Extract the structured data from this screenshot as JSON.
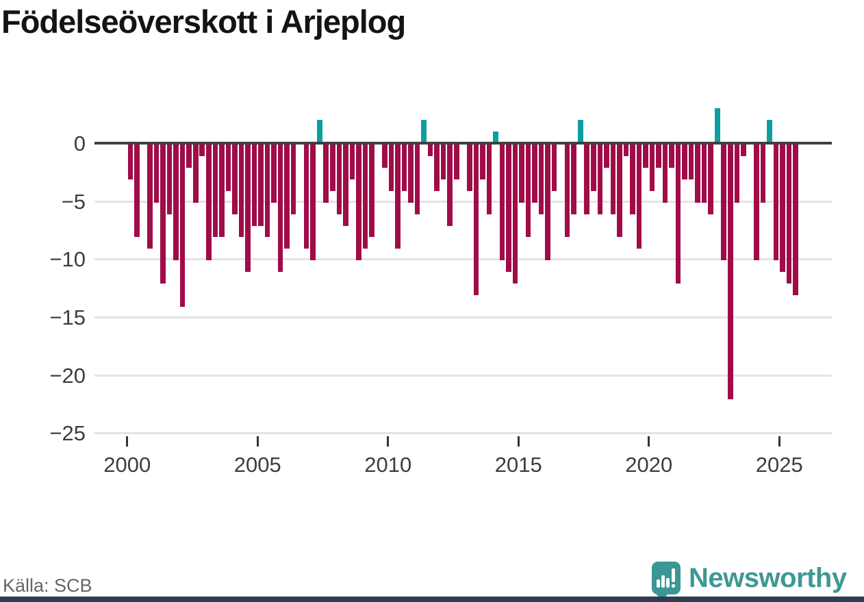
{
  "title": "Födelseöverskott i Arjeplog",
  "source": "Källa: SCB",
  "logo": {
    "text": "Newsworthy",
    "icon": "newsworthy-bar-chart-bubble-icon"
  },
  "colors": {
    "negative_bar": "#a00c48",
    "positive_bar": "#0d9fa0",
    "zero_line": "#404040",
    "gridline": "#e4e4e4",
    "axis_text": "#3d3d3d",
    "title_text": "#141414",
    "source_text": "#666666",
    "logo_teal": "#3f9894",
    "bottom_strip": "#2e3d52"
  },
  "chart_data": {
    "type": "bar",
    "title": "Födelseöverskott i Arjeplog",
    "xlabel": "",
    "ylabel": "",
    "start_year": 2000,
    "start_quarter": 1,
    "period": "quarterly",
    "values": [
      -3,
      -8,
      0,
      -9,
      -5,
      -12,
      -6,
      -10,
      -14,
      -2,
      -5,
      -1,
      -10,
      -8,
      -8,
      -4,
      -6,
      -8,
      -11,
      -7,
      -7,
      -8,
      -5,
      -11,
      -9,
      -6,
      0,
      -9,
      -10,
      2,
      -5,
      -4,
      -6,
      -7,
      -3,
      -10,
      -9,
      -8,
      0,
      -2,
      -4,
      -9,
      -4,
      -5,
      -6,
      2,
      -1,
      -4,
      -3,
      -7,
      -3,
      0,
      -4,
      -13,
      -3,
      -6,
      1,
      -10,
      -11,
      -12,
      -5,
      -8,
      -5,
      -6,
      -10,
      -4,
      0,
      -8,
      -6,
      2,
      -6,
      -4,
      -6,
      -2,
      -6,
      -8,
      -1,
      -6,
      -9,
      -2,
      -4,
      -2,
      -5,
      -2,
      -12,
      -3,
      -3,
      -5,
      -5,
      -6,
      3,
      -10,
      -22,
      -5,
      -1,
      0,
      -10,
      -5,
      2,
      -10,
      -11,
      -12,
      -13
    ],
    "x_tick_labels": [
      "2000",
      "2005",
      "2010",
      "2015",
      "2020",
      "2025"
    ],
    "y_tick_labels": [
      "0",
      "−5",
      "−10",
      "−15",
      "−20",
      "−25"
    ],
    "y_ticks": [
      0,
      -5,
      -10,
      -15,
      -20,
      -25
    ],
    "ylim": [
      -25,
      3
    ],
    "grid": "horizontal",
    "legend": "none"
  }
}
